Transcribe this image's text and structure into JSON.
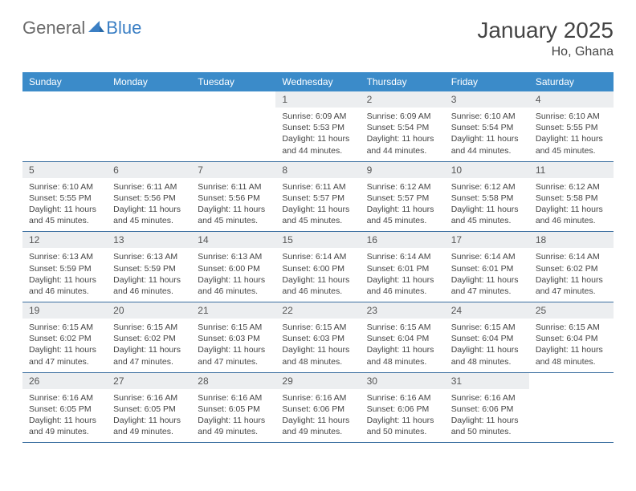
{
  "logo": {
    "text1": "General",
    "text2": "Blue"
  },
  "title": "January 2025",
  "location": "Ho, Ghana",
  "colors": {
    "header_bg": "#3b8bc9",
    "header_fg": "#ffffff",
    "daynum_bg": "#eceef0",
    "border": "#3b6fa0",
    "logo_gray": "#6b6b6b",
    "logo_blue": "#3b7fc4"
  },
  "weekdays": [
    "Sunday",
    "Monday",
    "Tuesday",
    "Wednesday",
    "Thursday",
    "Friday",
    "Saturday"
  ],
  "weeks": [
    [
      null,
      null,
      null,
      {
        "n": "1",
        "sr": "6:09 AM",
        "ss": "5:53 PM",
        "dl": "11 hours and 44 minutes."
      },
      {
        "n": "2",
        "sr": "6:09 AM",
        "ss": "5:54 PM",
        "dl": "11 hours and 44 minutes."
      },
      {
        "n": "3",
        "sr": "6:10 AM",
        "ss": "5:54 PM",
        "dl": "11 hours and 44 minutes."
      },
      {
        "n": "4",
        "sr": "6:10 AM",
        "ss": "5:55 PM",
        "dl": "11 hours and 45 minutes."
      }
    ],
    [
      {
        "n": "5",
        "sr": "6:10 AM",
        "ss": "5:55 PM",
        "dl": "11 hours and 45 minutes."
      },
      {
        "n": "6",
        "sr": "6:11 AM",
        "ss": "5:56 PM",
        "dl": "11 hours and 45 minutes."
      },
      {
        "n": "7",
        "sr": "6:11 AM",
        "ss": "5:56 PM",
        "dl": "11 hours and 45 minutes."
      },
      {
        "n": "8",
        "sr": "6:11 AM",
        "ss": "5:57 PM",
        "dl": "11 hours and 45 minutes."
      },
      {
        "n": "9",
        "sr": "6:12 AM",
        "ss": "5:57 PM",
        "dl": "11 hours and 45 minutes."
      },
      {
        "n": "10",
        "sr": "6:12 AM",
        "ss": "5:58 PM",
        "dl": "11 hours and 45 minutes."
      },
      {
        "n": "11",
        "sr": "6:12 AM",
        "ss": "5:58 PM",
        "dl": "11 hours and 46 minutes."
      }
    ],
    [
      {
        "n": "12",
        "sr": "6:13 AM",
        "ss": "5:59 PM",
        "dl": "11 hours and 46 minutes."
      },
      {
        "n": "13",
        "sr": "6:13 AM",
        "ss": "5:59 PM",
        "dl": "11 hours and 46 minutes."
      },
      {
        "n": "14",
        "sr": "6:13 AM",
        "ss": "6:00 PM",
        "dl": "11 hours and 46 minutes."
      },
      {
        "n": "15",
        "sr": "6:14 AM",
        "ss": "6:00 PM",
        "dl": "11 hours and 46 minutes."
      },
      {
        "n": "16",
        "sr": "6:14 AM",
        "ss": "6:01 PM",
        "dl": "11 hours and 46 minutes."
      },
      {
        "n": "17",
        "sr": "6:14 AM",
        "ss": "6:01 PM",
        "dl": "11 hours and 47 minutes."
      },
      {
        "n": "18",
        "sr": "6:14 AM",
        "ss": "6:02 PM",
        "dl": "11 hours and 47 minutes."
      }
    ],
    [
      {
        "n": "19",
        "sr": "6:15 AM",
        "ss": "6:02 PM",
        "dl": "11 hours and 47 minutes."
      },
      {
        "n": "20",
        "sr": "6:15 AM",
        "ss": "6:02 PM",
        "dl": "11 hours and 47 minutes."
      },
      {
        "n": "21",
        "sr": "6:15 AM",
        "ss": "6:03 PM",
        "dl": "11 hours and 47 minutes."
      },
      {
        "n": "22",
        "sr": "6:15 AM",
        "ss": "6:03 PM",
        "dl": "11 hours and 48 minutes."
      },
      {
        "n": "23",
        "sr": "6:15 AM",
        "ss": "6:04 PM",
        "dl": "11 hours and 48 minutes."
      },
      {
        "n": "24",
        "sr": "6:15 AM",
        "ss": "6:04 PM",
        "dl": "11 hours and 48 minutes."
      },
      {
        "n": "25",
        "sr": "6:15 AM",
        "ss": "6:04 PM",
        "dl": "11 hours and 48 minutes."
      }
    ],
    [
      {
        "n": "26",
        "sr": "6:16 AM",
        "ss": "6:05 PM",
        "dl": "11 hours and 49 minutes."
      },
      {
        "n": "27",
        "sr": "6:16 AM",
        "ss": "6:05 PM",
        "dl": "11 hours and 49 minutes."
      },
      {
        "n": "28",
        "sr": "6:16 AM",
        "ss": "6:05 PM",
        "dl": "11 hours and 49 minutes."
      },
      {
        "n": "29",
        "sr": "6:16 AM",
        "ss": "6:06 PM",
        "dl": "11 hours and 49 minutes."
      },
      {
        "n": "30",
        "sr": "6:16 AM",
        "ss": "6:06 PM",
        "dl": "11 hours and 50 minutes."
      },
      {
        "n": "31",
        "sr": "6:16 AM",
        "ss": "6:06 PM",
        "dl": "11 hours and 50 minutes."
      },
      null
    ]
  ],
  "labels": {
    "sunrise": "Sunrise:",
    "sunset": "Sunset:",
    "daylight": "Daylight:"
  }
}
